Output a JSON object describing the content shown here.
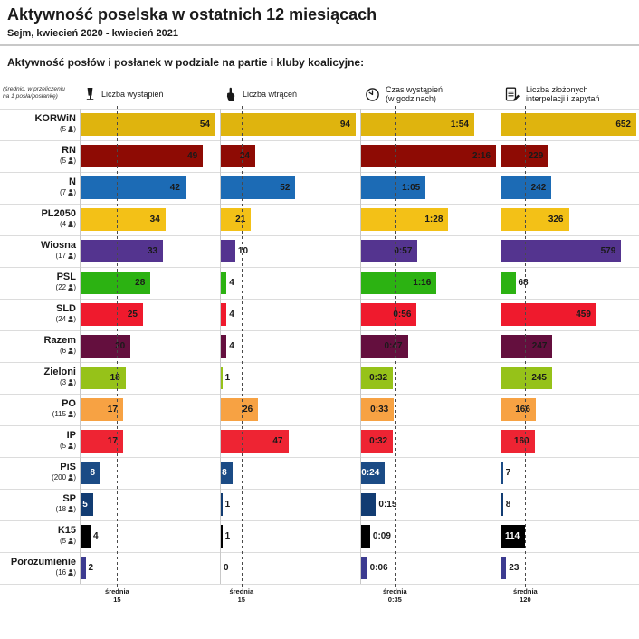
{
  "header": {
    "title": "Aktywność poselska w ostatnich 12 miesiącach",
    "subtitle": "Sejm, kwiecień 2020 - kwiecień 2021",
    "section_heading": "Aktywność posłów i posłanek w podziale na partie i kluby koalicyjne:",
    "per_member_note_line1": "(średnio, w przeliczeniu",
    "per_member_note_line2": "na 1 posła/posłankę)"
  },
  "chart_data": {
    "type": "bar",
    "orientation": "horizontal",
    "columns": [
      {
        "icon": "microphone-icon",
        "label_lines": [
          "Liczba wystąpień"
        ],
        "max": 54,
        "average": 15,
        "average_caption": "średnia",
        "average_label": "15"
      },
      {
        "icon": "interjection-hand-icon",
        "label_lines": [
          "Liczba wtrąceń"
        ],
        "max": 94,
        "average": 15,
        "average_caption": "średnia",
        "average_label": "15"
      },
      {
        "icon": "clock-icon",
        "label_lines": [
          "Czas wystąpień",
          "(w godzinach)"
        ],
        "max": 136,
        "average": 35,
        "average_caption": "średnia",
        "average_label": "0:35"
      },
      {
        "icon": "interpellation-document-icon",
        "label_lines": [
          "Liczba złożonych",
          "interpelacji i zapytań"
        ],
        "max": 652,
        "average": 120,
        "average_caption": "średnia",
        "average_label": "120"
      }
    ],
    "parties": [
      {
        "name": "KORWiN",
        "members": "5",
        "color": "#dfb40e",
        "label_color": "dark",
        "cells": [
          {
            "label": "54",
            "value": 54,
            "inside": true
          },
          {
            "label": "94",
            "value": 94,
            "inside": true
          },
          {
            "label": "1:54",
            "value": 114,
            "inside": true
          },
          {
            "label": "652",
            "value": 652,
            "inside": true
          }
        ]
      },
      {
        "name": "RN",
        "members": "5",
        "color": "#8e0b04",
        "label_color": "dark",
        "cells": [
          {
            "label": "49",
            "value": 49,
            "inside": true
          },
          {
            "label": "24",
            "value": 24,
            "inside": true
          },
          {
            "label": "2:16",
            "value": 136,
            "inside": true
          },
          {
            "label": "229",
            "value": 229,
            "inside": true
          }
        ]
      },
      {
        "name": "N",
        "members": "7",
        "color": "#1c6bb5",
        "label_color": "dark",
        "cells": [
          {
            "label": "42",
            "value": 42,
            "inside": true
          },
          {
            "label": "52",
            "value": 52,
            "inside": true
          },
          {
            "label": "1:05",
            "value": 65,
            "inside": true
          },
          {
            "label": "242",
            "value": 242,
            "inside": true
          }
        ]
      },
      {
        "name": "PL2050",
        "members": "4",
        "color": "#f3c117",
        "label_color": "dark",
        "cells": [
          {
            "label": "34",
            "value": 34,
            "inside": true
          },
          {
            "label": "21",
            "value": 21,
            "inside": true
          },
          {
            "label": "1:28",
            "value": 88,
            "inside": true
          },
          {
            "label": "326",
            "value": 326,
            "inside": true
          }
        ]
      },
      {
        "name": "Wiosna",
        "members": "17",
        "color": "#54348f",
        "label_color": "dark",
        "cells": [
          {
            "label": "33",
            "value": 33,
            "inside": true
          },
          {
            "label": "10",
            "value": 10,
            "inside": false
          },
          {
            "label": "0:57",
            "value": 57,
            "inside": true
          },
          {
            "label": "579",
            "value": 579,
            "inside": true
          }
        ]
      },
      {
        "name": "PSL",
        "members": "22",
        "color": "#2cb212",
        "label_color": "dark",
        "cells": [
          {
            "label": "28",
            "value": 28,
            "inside": true
          },
          {
            "label": "4",
            "value": 4,
            "inside": false
          },
          {
            "label": "1:16",
            "value": 76,
            "inside": true
          },
          {
            "label": "68",
            "value": 68,
            "inside": false
          }
        ]
      },
      {
        "name": "SLD",
        "members": "24",
        "color": "#ef1a2d",
        "label_color": "dark",
        "cells": [
          {
            "label": "25",
            "value": 25,
            "inside": true
          },
          {
            "label": "4",
            "value": 4,
            "inside": false
          },
          {
            "label": "0:56",
            "value": 56,
            "inside": true
          },
          {
            "label": "459",
            "value": 459,
            "inside": true
          }
        ]
      },
      {
        "name": "Razem",
        "members": "6",
        "color": "#640f3e",
        "label_color": "dark",
        "cells": [
          {
            "label": "20",
            "value": 20,
            "inside": true
          },
          {
            "label": "4",
            "value": 4,
            "inside": false
          },
          {
            "label": "0:47",
            "value": 47,
            "inside": true
          },
          {
            "label": "247",
            "value": 247,
            "inside": true
          }
        ]
      },
      {
        "name": "Zieloni",
        "members": "3",
        "color": "#96c219",
        "label_color": "dark",
        "cells": [
          {
            "label": "18",
            "value": 18,
            "inside": true
          },
          {
            "label": "1",
            "value": 1,
            "inside": false
          },
          {
            "label": "0:32",
            "value": 32,
            "inside": true
          },
          {
            "label": "245",
            "value": 245,
            "inside": true
          }
        ]
      },
      {
        "name": "PO",
        "members": "115",
        "color": "#f7a243",
        "label_color": "dark",
        "cells": [
          {
            "label": "17",
            "value": 17,
            "inside": true
          },
          {
            "label": "26",
            "value": 26,
            "inside": true
          },
          {
            "label": "0:33",
            "value": 33,
            "inside": true
          },
          {
            "label": "166",
            "value": 166,
            "inside": true
          }
        ]
      },
      {
        "name": "IP",
        "members": "5",
        "color": "#ee2433",
        "label_color": "dark",
        "cells": [
          {
            "label": "17",
            "value": 17,
            "inside": true
          },
          {
            "label": "47",
            "value": 47,
            "inside": true
          },
          {
            "label": "0:32",
            "value": 32,
            "inside": true
          },
          {
            "label": "160",
            "value": 160,
            "inside": true
          }
        ]
      },
      {
        "name": "PiS",
        "members": "200",
        "color": "#1b4b85",
        "label_color": "white",
        "cells": [
          {
            "label": "8",
            "value": 8,
            "inside": true
          },
          {
            "label": "8",
            "value": 8,
            "inside": true
          },
          {
            "label": "0:24",
            "value": 24,
            "inside": true
          },
          {
            "label": "7",
            "value": 7,
            "inside": false
          }
        ]
      },
      {
        "name": "SP",
        "members": "18",
        "color": "#123c72",
        "label_color": "white",
        "cells": [
          {
            "label": "5",
            "value": 5,
            "inside": true
          },
          {
            "label": "1",
            "value": 1,
            "inside": false
          },
          {
            "label": "0:15",
            "value": 15,
            "inside": false
          },
          {
            "label": "8",
            "value": 8,
            "inside": false
          }
        ]
      },
      {
        "name": "K15",
        "members": "5",
        "color": "#000000",
        "label_color": "white",
        "cells": [
          {
            "label": "4",
            "value": 4,
            "inside": false
          },
          {
            "label": "1",
            "value": 1,
            "inside": false
          },
          {
            "label": "0:09",
            "value": 9,
            "inside": false
          },
          {
            "label": "114",
            "value": 114,
            "inside": true
          }
        ]
      },
      {
        "name": "Porozumienie",
        "members": "16",
        "color": "#3c3b90",
        "label_color": "dark",
        "cells": [
          {
            "label": "2",
            "value": 2,
            "inside": false
          },
          {
            "label": "0",
            "value": 0,
            "inside": false
          },
          {
            "label": "0:06",
            "value": 6,
            "inside": false
          },
          {
            "label": "23",
            "value": 23,
            "inside": false
          }
        ]
      }
    ]
  }
}
